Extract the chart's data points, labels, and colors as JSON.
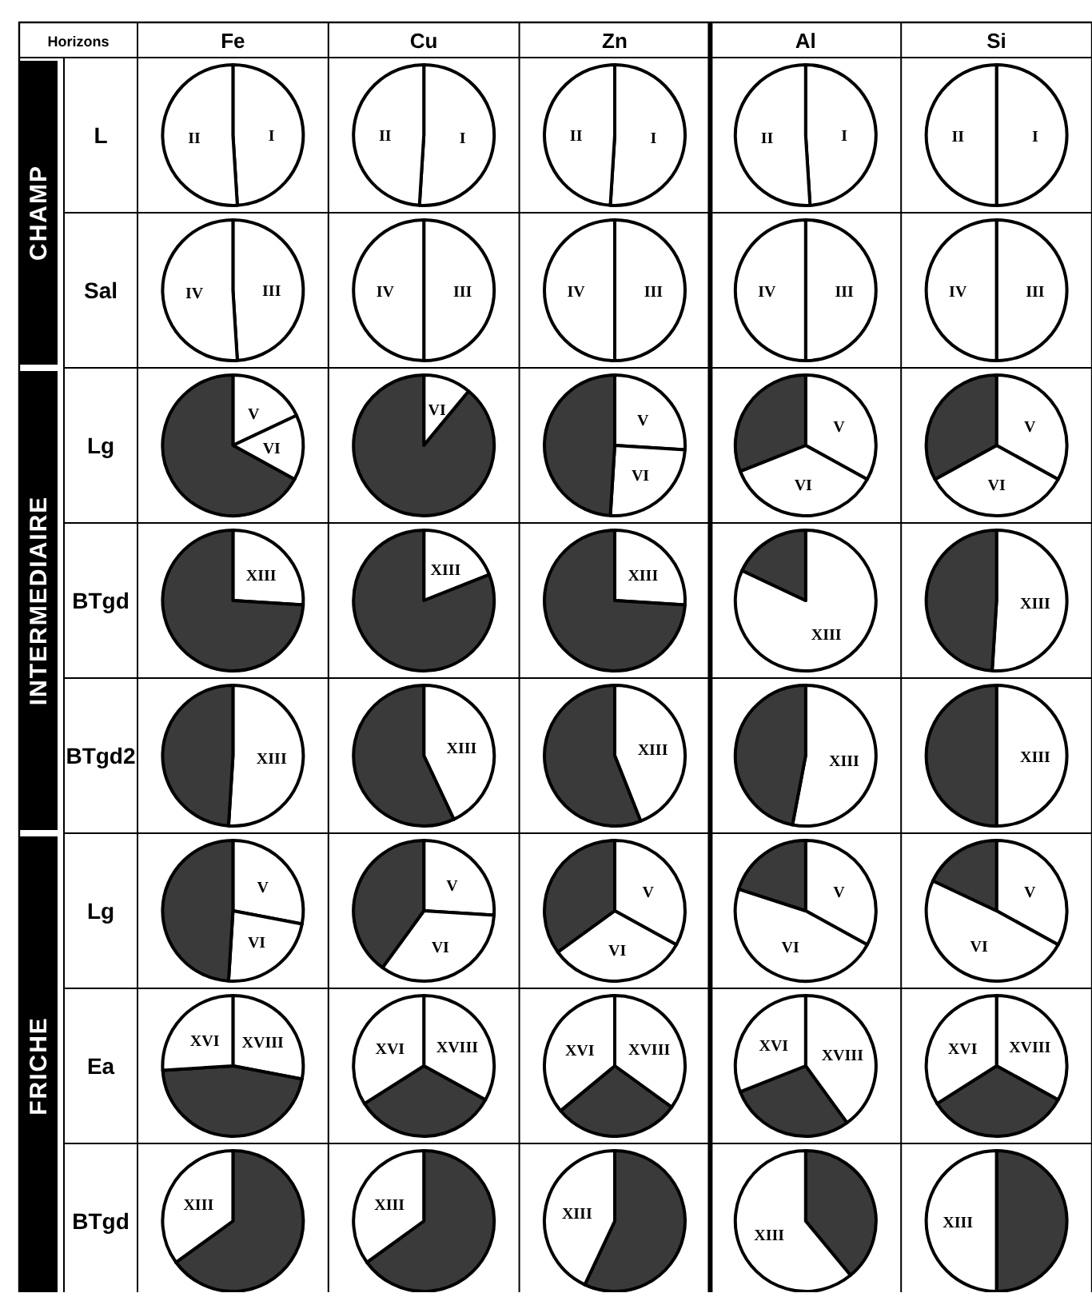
{
  "chart_data": [
    {
      "type": "pie",
      "title": "Fe",
      "subtitle": "Horizons",
      "ylabel": "L",
      "annotations": [
        "CHAMP"
      ],
      "categories": [
        "I",
        "II"
      ],
      "values": [
        49,
        51
      ],
      "colors": [
        "#ffffff",
        "#ffffff"
      ]
    },
    {
      "type": "pie",
      "title": "Cu",
      "categories": [
        "I",
        "II"
      ],
      "values": [
        51,
        49
      ],
      "colors": [
        "#ffffff",
        "#ffffff"
      ]
    },
    {
      "type": "pie",
      "title": "Zn",
      "categories": [
        "I",
        "II"
      ],
      "values": [
        51,
        49
      ],
      "colors": [
        "#ffffff",
        "#ffffff"
      ]
    },
    {
      "type": "pie",
      "title": "Al",
      "categories": [
        "I",
        "II"
      ],
      "values": [
        49,
        51
      ],
      "colors": [
        "#ffffff",
        "#ffffff"
      ]
    },
    {
      "type": "pie",
      "title": "Si",
      "categories": [
        "I",
        "II"
      ],
      "values": [
        50,
        50
      ],
      "colors": [
        "#ffffff",
        "#ffffff"
      ]
    },
    {
      "type": "pie",
      "ylabel": "Sal",
      "categories": [
        "III",
        "IV"
      ],
      "values": [
        49,
        51
      ],
      "colors": [
        "#ffffff",
        "#ffffff"
      ]
    },
    {
      "type": "pie",
      "categories": [
        "III",
        "IV"
      ],
      "values": [
        50,
        50
      ],
      "colors": [
        "#ffffff",
        "#ffffff"
      ]
    },
    {
      "type": "pie",
      "categories": [
        "III",
        "IV"
      ],
      "values": [
        50,
        50
      ],
      "colors": [
        "#ffffff",
        "#ffffff"
      ]
    },
    {
      "type": "pie",
      "categories": [
        "III",
        "IV"
      ],
      "values": [
        50,
        50
      ],
      "colors": [
        "#ffffff",
        "#ffffff"
      ]
    },
    {
      "type": "pie",
      "categories": [
        "III",
        "IV"
      ],
      "values": [
        50,
        50
      ],
      "colors": [
        "#ffffff",
        "#ffffff"
      ]
    },
    {
      "type": "pie",
      "ylabel": "Lg",
      "annotations": [
        "INTERMEDIAIRE"
      ],
      "categories": [
        "V",
        "VI",
        null
      ],
      "values": [
        18,
        15,
        67
      ],
      "colors": [
        "#ffffff",
        "#ffffff",
        "#3a3a3a"
      ]
    },
    {
      "type": "pie",
      "categories": [
        "VI",
        null
      ],
      "values": [
        11,
        89
      ],
      "colors": [
        "#ffffff",
        "#3a3a3a"
      ]
    },
    {
      "type": "pie",
      "categories": [
        "V",
        "VI",
        null
      ],
      "values": [
        26,
        25,
        49
      ],
      "colors": [
        "#ffffff",
        "#ffffff",
        "#3a3a3a"
      ]
    },
    {
      "type": "pie",
      "categories": [
        "V",
        "VI",
        null
      ],
      "values": [
        33,
        36,
        31
      ],
      "colors": [
        "#ffffff",
        "#ffffff",
        "#3a3a3a"
      ]
    },
    {
      "type": "pie",
      "categories": [
        "V",
        "VI",
        null
      ],
      "values": [
        33,
        34,
        33
      ],
      "colors": [
        "#ffffff",
        "#ffffff",
        "#3a3a3a"
      ]
    },
    {
      "type": "pie",
      "ylabel": "BTgd",
      "categories": [
        "XIII",
        null
      ],
      "values": [
        26,
        74
      ],
      "colors": [
        "#ffffff",
        "#3a3a3a"
      ]
    },
    {
      "type": "pie",
      "categories": [
        "XIII",
        null
      ],
      "values": [
        19,
        81
      ],
      "colors": [
        "#ffffff",
        "#3a3a3a"
      ]
    },
    {
      "type": "pie",
      "categories": [
        "XIII",
        null
      ],
      "values": [
        26,
        74
      ],
      "colors": [
        "#ffffff",
        "#3a3a3a"
      ]
    },
    {
      "type": "pie",
      "categories": [
        "XIII",
        null
      ],
      "values": [
        82,
        18
      ],
      "colors": [
        "#ffffff",
        "#3a3a3a"
      ]
    },
    {
      "type": "pie",
      "categories": [
        "XIII",
        null
      ],
      "values": [
        51,
        49
      ],
      "colors": [
        "#ffffff",
        "#3a3a3a"
      ]
    },
    {
      "type": "pie",
      "ylabel": "BTgd2",
      "categories": [
        "XIII",
        null
      ],
      "values": [
        51,
        49
      ],
      "colors": [
        "#ffffff",
        "#3a3a3a"
      ]
    },
    {
      "type": "pie",
      "categories": [
        "XIII",
        null
      ],
      "values": [
        43,
        57
      ],
      "colors": [
        "#ffffff",
        "#3a3a3a"
      ]
    },
    {
      "type": "pie",
      "categories": [
        "XIII",
        null
      ],
      "values": [
        44,
        56
      ],
      "colors": [
        "#ffffff",
        "#3a3a3a"
      ]
    },
    {
      "type": "pie",
      "categories": [
        "XIII",
        null
      ],
      "values": [
        53,
        47
      ],
      "colors": [
        "#ffffff",
        "#3a3a3a"
      ]
    },
    {
      "type": "pie",
      "categories": [
        "XIII",
        null
      ],
      "values": [
        50,
        50
      ],
      "colors": [
        "#ffffff",
        "#3a3a3a"
      ]
    },
    {
      "type": "pie",
      "ylabel": "Lg",
      "annotations": [
        "FRICHE"
      ],
      "categories": [
        "V",
        "VI",
        null
      ],
      "values": [
        28,
        23,
        49
      ],
      "colors": [
        "#ffffff",
        "#ffffff",
        "#3a3a3a"
      ]
    },
    {
      "type": "pie",
      "categories": [
        "V",
        "VI",
        null
      ],
      "values": [
        26,
        34,
        40
      ],
      "colors": [
        "#ffffff",
        "#ffffff",
        "#3a3a3a"
      ]
    },
    {
      "type": "pie",
      "categories": [
        "V",
        "VI",
        null
      ],
      "values": [
        33,
        32,
        35
      ],
      "colors": [
        "#ffffff",
        "#ffffff",
        "#3a3a3a"
      ]
    },
    {
      "type": "pie",
      "categories": [
        "V",
        "VI",
        null
      ],
      "values": [
        33,
        47,
        20
      ],
      "colors": [
        "#ffffff",
        "#ffffff",
        "#3a3a3a"
      ]
    },
    {
      "type": "pie",
      "categories": [
        "V",
        "VI",
        null
      ],
      "values": [
        33,
        49,
        18
      ],
      "colors": [
        "#ffffff",
        "#ffffff",
        "#3a3a3a"
      ]
    },
    {
      "type": "pie",
      "ylabel": "Ea",
      "categories": [
        "XVIII",
        null,
        "XVI"
      ],
      "values": [
        28,
        46,
        26
      ],
      "colors": [
        "#ffffff",
        "#3a3a3a",
        "#ffffff"
      ]
    },
    {
      "type": "pie",
      "categories": [
        "XVIII",
        null,
        "XVI"
      ],
      "values": [
        33,
        33,
        34
      ],
      "colors": [
        "#ffffff",
        "#3a3a3a",
        "#ffffff"
      ]
    },
    {
      "type": "pie",
      "categories": [
        "XVIII",
        null,
        "XVI"
      ],
      "values": [
        35,
        29,
        36
      ],
      "colors": [
        "#ffffff",
        "#3a3a3a",
        "#ffffff"
      ]
    },
    {
      "type": "pie",
      "categories": [
        "XVIII",
        null,
        "XVI"
      ],
      "values": [
        40,
        29,
        31
      ],
      "colors": [
        "#ffffff",
        "#3a3a3a",
        "#ffffff"
      ]
    },
    {
      "type": "pie",
      "categories": [
        "XVIII",
        null,
        "XVI"
      ],
      "values": [
        33,
        33,
        34
      ],
      "colors": [
        "#ffffff",
        "#3a3a3a",
        "#ffffff"
      ]
    },
    {
      "type": "pie",
      "ylabel": "BTgd",
      "categories": [
        null,
        "XIII"
      ],
      "values": [
        65,
        35
      ],
      "colors": [
        "#3a3a3a",
        "#ffffff"
      ]
    },
    {
      "type": "pie",
      "categories": [
        null,
        "XIII"
      ],
      "values": [
        65,
        35
      ],
      "colors": [
        "#3a3a3a",
        "#ffffff"
      ]
    },
    {
      "type": "pie",
      "categories": [
        null,
        "XIII"
      ],
      "values": [
        57,
        43
      ],
      "colors": [
        "#3a3a3a",
        "#ffffff"
      ]
    },
    {
      "type": "pie",
      "categories": [
        null,
        "XIII"
      ],
      "values": [
        39,
        61
      ],
      "colors": [
        "#3a3a3a",
        "#ffffff"
      ]
    },
    {
      "type": "pie",
      "categories": [
        null,
        "XIII"
      ],
      "values": [
        50,
        50
      ],
      "colors": [
        "#3a3a3a",
        "#ffffff"
      ]
    }
  ]
}
